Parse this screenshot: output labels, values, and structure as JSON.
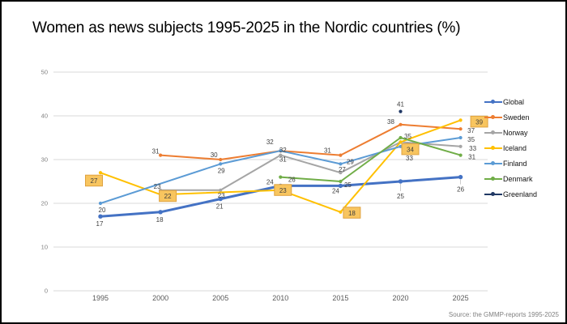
{
  "slide": {
    "source_note": "Source: the GMMP-reports 1995-2025"
  },
  "chart_data": {
    "type": "line",
    "title": "Women as news subjects 1995-2025 in the Nordic countries (%)",
    "categories": [
      "1995",
      "2000",
      "2005",
      "2010",
      "2015",
      "2020",
      "2025"
    ],
    "series": [
      {
        "name": "Global",
        "color": "#4472C4",
        "width": 3,
        "values": [
          17,
          18,
          21,
          24,
          24,
          25,
          26
        ],
        "label_offsets": [
          [
            -1,
            9
          ],
          [
            -1,
            9
          ],
          [
            -1,
            9
          ],
          [
            -13,
            -5
          ],
          [
            -6,
            6
          ],
          [
            0,
            18,
            1
          ],
          [
            0,
            15,
            1
          ]
        ]
      },
      {
        "name": "Sweden",
        "color": "#ED7D31",
        "width": 2,
        "values": [
          null,
          31,
          30,
          32,
          31,
          38,
          37
        ],
        "label_offsets": [
          null,
          [
            -6,
            -5
          ],
          [
            -8,
            -6
          ],
          [
            3,
            -1
          ],
          [
            -16,
            -6
          ],
          [
            -12,
            -4
          ],
          [
            13,
            2
          ]
        ]
      },
      {
        "name": "Norway",
        "color": "#A5A5A5",
        "width": 2,
        "values": [
          null,
          23,
          23,
          31,
          27,
          34,
          33
        ],
        "label_offsets": [
          null,
          [
            -4,
            -5
          ],
          [
            1,
            6
          ],
          [
            3,
            5
          ],
          [
            2,
            -4
          ],
          [
            11,
            5
          ],
          [
            15,
            2
          ]
        ]
      },
      {
        "name": "Iceland",
        "color": "#FFC000",
        "width": 2,
        "values": [
          27,
          22,
          null,
          23,
          18,
          34,
          39
        ],
        "boxed_labels": true,
        "label_offsets": [
          [
            -8,
            10
          ],
          [
            9,
            2
          ],
          null,
          [
            3,
            0
          ],
          [
            14,
            1
          ],
          [
            12,
            9
          ],
          [
            23,
            2
          ]
        ]
      },
      {
        "name": "Finland",
        "color": "#5B9BD5",
        "width": 2,
        "values": [
          20,
          null,
          29,
          32,
          29,
          33,
          35
        ],
        "label_offsets": [
          [
            2,
            8
          ],
          null,
          [
            1,
            8
          ],
          [
            -13,
            -11
          ],
          [
            12,
            -3
          ],
          [
            11,
            14
          ],
          [
            13,
            2
          ]
        ]
      },
      {
        "name": "Denmark",
        "color": "#70AD47",
        "width": 2,
        "values": [
          null,
          null,
          null,
          26,
          25,
          35,
          31
        ],
        "label_offsets": [
          null,
          null,
          null,
          [
            14,
            3
          ],
          [
            9,
            4
          ],
          [
            9,
            -2
          ],
          [
            14,
            2
          ]
        ]
      },
      {
        "name": "Greenland",
        "color": "#203864",
        "width": 2,
        "values": [
          null,
          null,
          null,
          null,
          null,
          41,
          null
        ],
        "label_offsets": [
          null,
          null,
          null,
          null,
          null,
          [
            0,
            -9
          ],
          null
        ]
      }
    ],
    "ylim": [
      0,
      50
    ],
    "yticks": [
      0,
      10,
      20,
      30,
      40,
      50
    ],
    "grid": true,
    "legend_position": "right",
    "label_box_style": {
      "fill": "#F8C55F",
      "stroke": "#DFA23F"
    }
  }
}
